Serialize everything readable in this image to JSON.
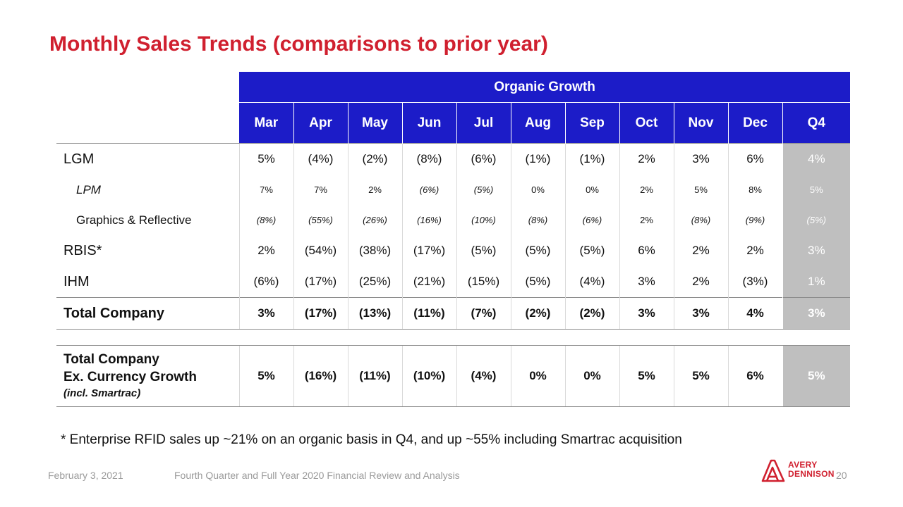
{
  "title": "Monthly Sales Trends (comparisons to prior year)",
  "table": {
    "group_header": "Organic Growth",
    "columns": [
      "Mar",
      "Apr",
      "May",
      "Jun",
      "Jul",
      "Aug",
      "Sep",
      "Oct",
      "Nov",
      "Dec",
      "Q4"
    ],
    "rows": [
      {
        "label": "LGM",
        "values": [
          "5%",
          "(4%)",
          "(2%)",
          "(8%)",
          "(6%)",
          "(1%)",
          "(1%)",
          "2%",
          "3%",
          "6%",
          "4%"
        ]
      },
      {
        "label": "LPM",
        "values": [
          "7%",
          "7%",
          "2%",
          "(6%)",
          "(5%)",
          "0%",
          "0%",
          "2%",
          "5%",
          "8%",
          "5%"
        ]
      },
      {
        "label": "Graphics & Reflective",
        "values": [
          "(8%)",
          "(55%)",
          "(26%)",
          "(16%)",
          "(10%)",
          "(8%)",
          "(6%)",
          "2%",
          "(8%)",
          "(9%)",
          "(5%)"
        ]
      },
      {
        "label": "RBIS*",
        "values": [
          "2%",
          "(54%)",
          "(38%)",
          "(17%)",
          "(5%)",
          "(5%)",
          "(5%)",
          "6%",
          "2%",
          "2%",
          "3%"
        ]
      },
      {
        "label": "IHM",
        "values": [
          "(6%)",
          "(17%)",
          "(25%)",
          "(21%)",
          "(15%)",
          "(5%)",
          "(4%)",
          "3%",
          "2%",
          "(3%)",
          "1%"
        ]
      }
    ],
    "total": {
      "label": "Total Company",
      "values": [
        "3%",
        "(17%)",
        "(13%)",
        "(11%)",
        "(7%)",
        "(2%)",
        "(2%)",
        "3%",
        "3%",
        "4%",
        "3%"
      ]
    },
    "ex_currency": {
      "label_line1": "Total Company",
      "label_line2": "Ex. Currency Growth",
      "label_line3": "(incl. Smartrac)",
      "values": [
        "5%",
        "(16%)",
        "(11%)",
        "(10%)",
        "(4%)",
        "0%",
        "0%",
        "5%",
        "5%",
        "6%",
        "5%"
      ]
    }
  },
  "footnote": "* Enterprise RFID sales up ~21% on an organic basis in Q4, and up ~55% including Smartrac acquisition",
  "footer": {
    "date": "February 3, 2021",
    "description": "Fourth Quarter and Full Year 2020 Financial Review and Analysis",
    "page": "20"
  },
  "logo": {
    "line1": "AVERY",
    "line2": "DENNISON"
  },
  "colors": {
    "title": "#d0202f",
    "header_bg": "#1c1cc8",
    "q4_bg": "#bfbfbf"
  }
}
